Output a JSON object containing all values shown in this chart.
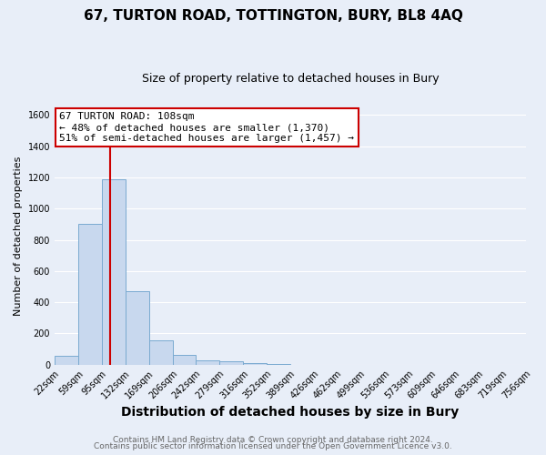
{
  "title": "67, TURTON ROAD, TOTTINGTON, BURY, BL8 4AQ",
  "subtitle": "Size of property relative to detached houses in Bury",
  "xlabel": "Distribution of detached houses by size in Bury",
  "ylabel": "Number of detached properties",
  "bar_color": "#c8d8ee",
  "bar_edge_color": "#7aaad0",
  "background_color": "#e8eef8",
  "plot_bg_color": "#e8eef8",
  "grid_color": "#ffffff",
  "vline_x": 108,
  "vline_color": "#cc0000",
  "bin_edges": [
    22,
    59,
    95,
    132,
    169,
    206,
    242,
    279,
    316,
    352,
    389,
    426,
    462,
    499,
    536,
    573,
    609,
    646,
    683,
    719,
    756
  ],
  "bin_counts": [
    55,
    900,
    1190,
    470,
    155,
    60,
    30,
    20,
    10,
    5,
    0,
    0,
    0,
    0,
    0,
    0,
    0,
    0,
    0,
    0
  ],
  "annotation_title": "67 TURTON ROAD: 108sqm",
  "annotation_line1": "← 48% of detached houses are smaller (1,370)",
  "annotation_line2": "51% of semi-detached houses are larger (1,457) →",
  "annotation_box_color": "#ffffff",
  "annotation_box_edge": "#cc0000",
  "ylim": [
    0,
    1650
  ],
  "yticks": [
    0,
    200,
    400,
    600,
    800,
    1000,
    1200,
    1400,
    1600
  ],
  "footer1": "Contains HM Land Registry data © Crown copyright and database right 2024.",
  "footer2": "Contains public sector information licensed under the Open Government Licence v3.0.",
  "title_fontsize": 11,
  "subtitle_fontsize": 9,
  "xlabel_fontsize": 10,
  "ylabel_fontsize": 8,
  "tick_fontsize": 7,
  "annotation_fontsize": 8,
  "footer_fontsize": 6.5
}
